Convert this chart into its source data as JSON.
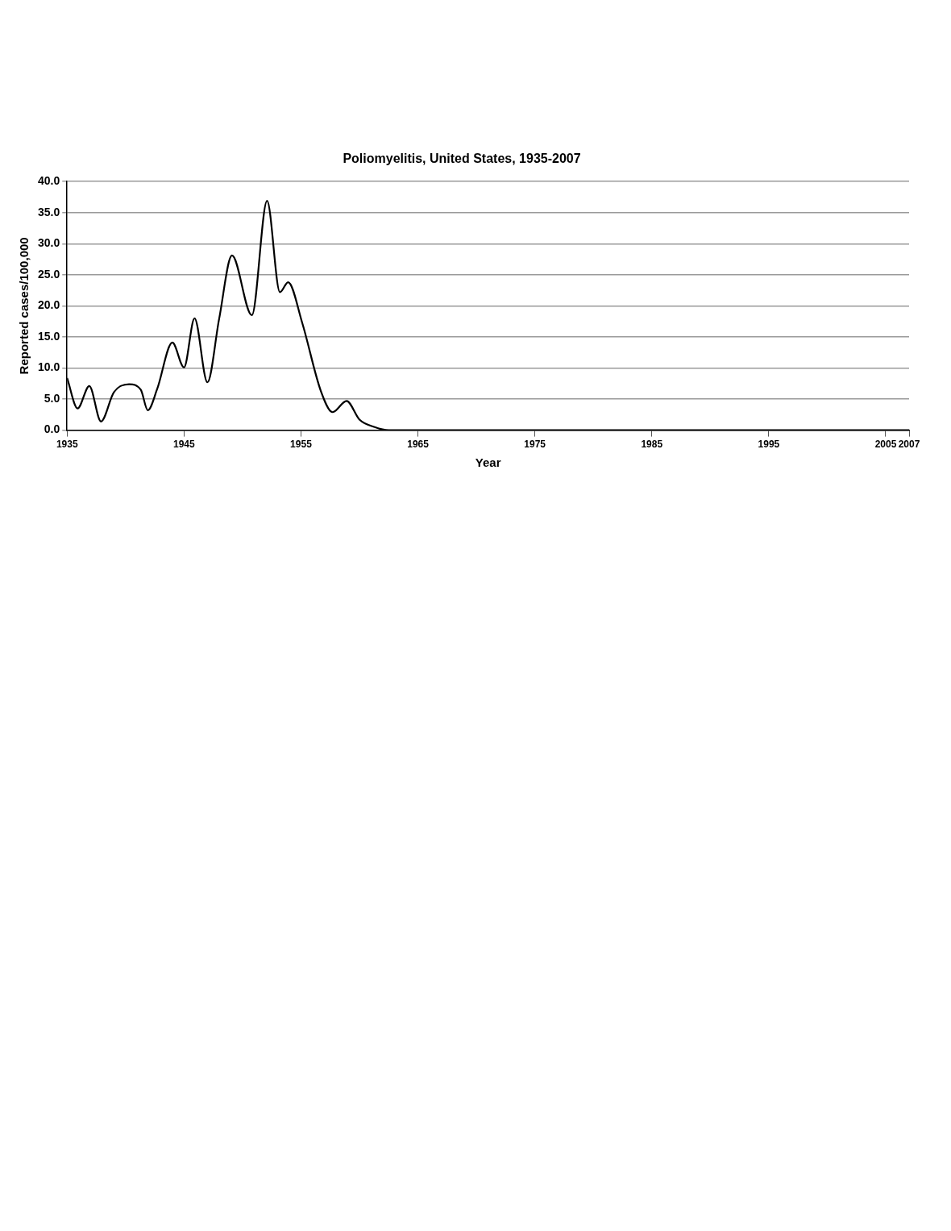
{
  "chart_data": {
    "type": "line",
    "title": "Poliomyelitis, United States, 1935-2007",
    "xlabel": "Year",
    "ylabel": "Reported cases/100,000",
    "x": [
      1935,
      1935.9,
      1936.9,
      1937.9,
      1939.0,
      1940.3,
      1941.3,
      1941.9,
      1942.7,
      1944.0,
      1945.0,
      1945.9,
      1947.0,
      1948.0,
      1949.1,
      1950.8,
      1952.1,
      1953.2,
      1953.9,
      1955.1,
      1956.7,
      1957.7,
      1958.9,
      1960.0,
      1961.3,
      1962.5,
      1970,
      1980,
      1990,
      2000,
      2007
    ],
    "series": [
      {
        "color": "#000000",
        "values": [
          8.4,
          3.5,
          7.1,
          1.4,
          6.1,
          7.4,
          6.5,
          3.2,
          6.6,
          14.1,
          10.1,
          18.0,
          7.7,
          17.9,
          28.1,
          18.5,
          36.9,
          22.2,
          23.8,
          17.3,
          6.3,
          2.9,
          4.7,
          1.7,
          0.5,
          0,
          0,
          0,
          0,
          0,
          0
        ]
      }
    ],
    "xlim": [
      1935,
      2007
    ],
    "xticks": [
      1935,
      1945,
      1955,
      1965,
      1975,
      1985,
      1995,
      2005,
      2007
    ],
    "ylim": [
      0,
      40
    ],
    "yticks": [
      {
        "value": 0,
        "label": "0.0"
      },
      {
        "value": 5,
        "label": "5.0"
      },
      {
        "value": 10,
        "label": "10.0"
      },
      {
        "value": 15,
        "label": "15.0"
      },
      {
        "value": 20,
        "label": "20.0"
      },
      {
        "value": 25,
        "label": "25.0"
      },
      {
        "value": 30,
        "label": "30.0"
      },
      {
        "value": 35,
        "label": "35.0"
      },
      {
        "value": 40,
        "label": "40.0"
      }
    ],
    "grid": "y",
    "legend": false,
    "marker": "none",
    "line_style": "solid"
  }
}
